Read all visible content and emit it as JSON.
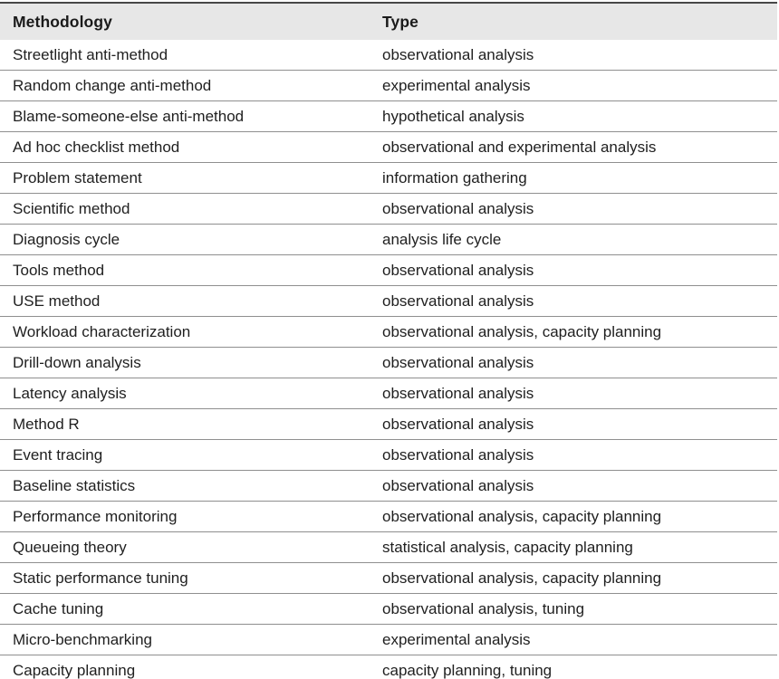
{
  "table": {
    "columns": {
      "methodology": "Methodology",
      "type": "Type"
    },
    "rows": [
      {
        "methodology": "Streetlight anti-method",
        "type": "observational analysis"
      },
      {
        "methodology": "Random change anti-method",
        "type": "experimental analysis"
      },
      {
        "methodology": "Blame-someone-else anti-method",
        "type": "hypothetical analysis"
      },
      {
        "methodology": "Ad hoc checklist method",
        "type": "observational and experimental analysis"
      },
      {
        "methodology": "Problem statement",
        "type": "information gathering"
      },
      {
        "methodology": "Scientific method",
        "type": "observational analysis"
      },
      {
        "methodology": "Diagnosis cycle",
        "type": "analysis life cycle"
      },
      {
        "methodology": "Tools method",
        "type": "observational analysis"
      },
      {
        "methodology": "USE method",
        "type": "observational analysis"
      },
      {
        "methodology": "Workload characterization",
        "type": "observational analysis, capacity planning"
      },
      {
        "methodology": "Drill-down analysis",
        "type": "observational analysis"
      },
      {
        "methodology": "Latency analysis",
        "type": "observational analysis"
      },
      {
        "methodology": "Method R",
        "type": "observational analysis"
      },
      {
        "methodology": "Event tracing",
        "type": "observational analysis"
      },
      {
        "methodology": "Baseline statistics",
        "type": "observational analysis"
      },
      {
        "methodology": "Performance monitoring",
        "type": "observational analysis, capacity planning"
      },
      {
        "methodology": "Queueing theory",
        "type": "statistical analysis, capacity planning"
      },
      {
        "methodology": "Static performance tuning",
        "type": "observational analysis, capacity planning"
      },
      {
        "methodology": "Cache tuning",
        "type": "observational analysis, tuning"
      },
      {
        "methodology": "Micro-benchmarking",
        "type": "experimental analysis"
      },
      {
        "methodology": "Capacity planning",
        "type": "capacity planning, tuning"
      }
    ]
  },
  "colors": {
    "header_background": "#e7e7e7",
    "row_divider": "#8f8f8f",
    "top_rule": "#474747",
    "bottom_rule": "#1c1c1c",
    "text": "#1f1f1f"
  }
}
